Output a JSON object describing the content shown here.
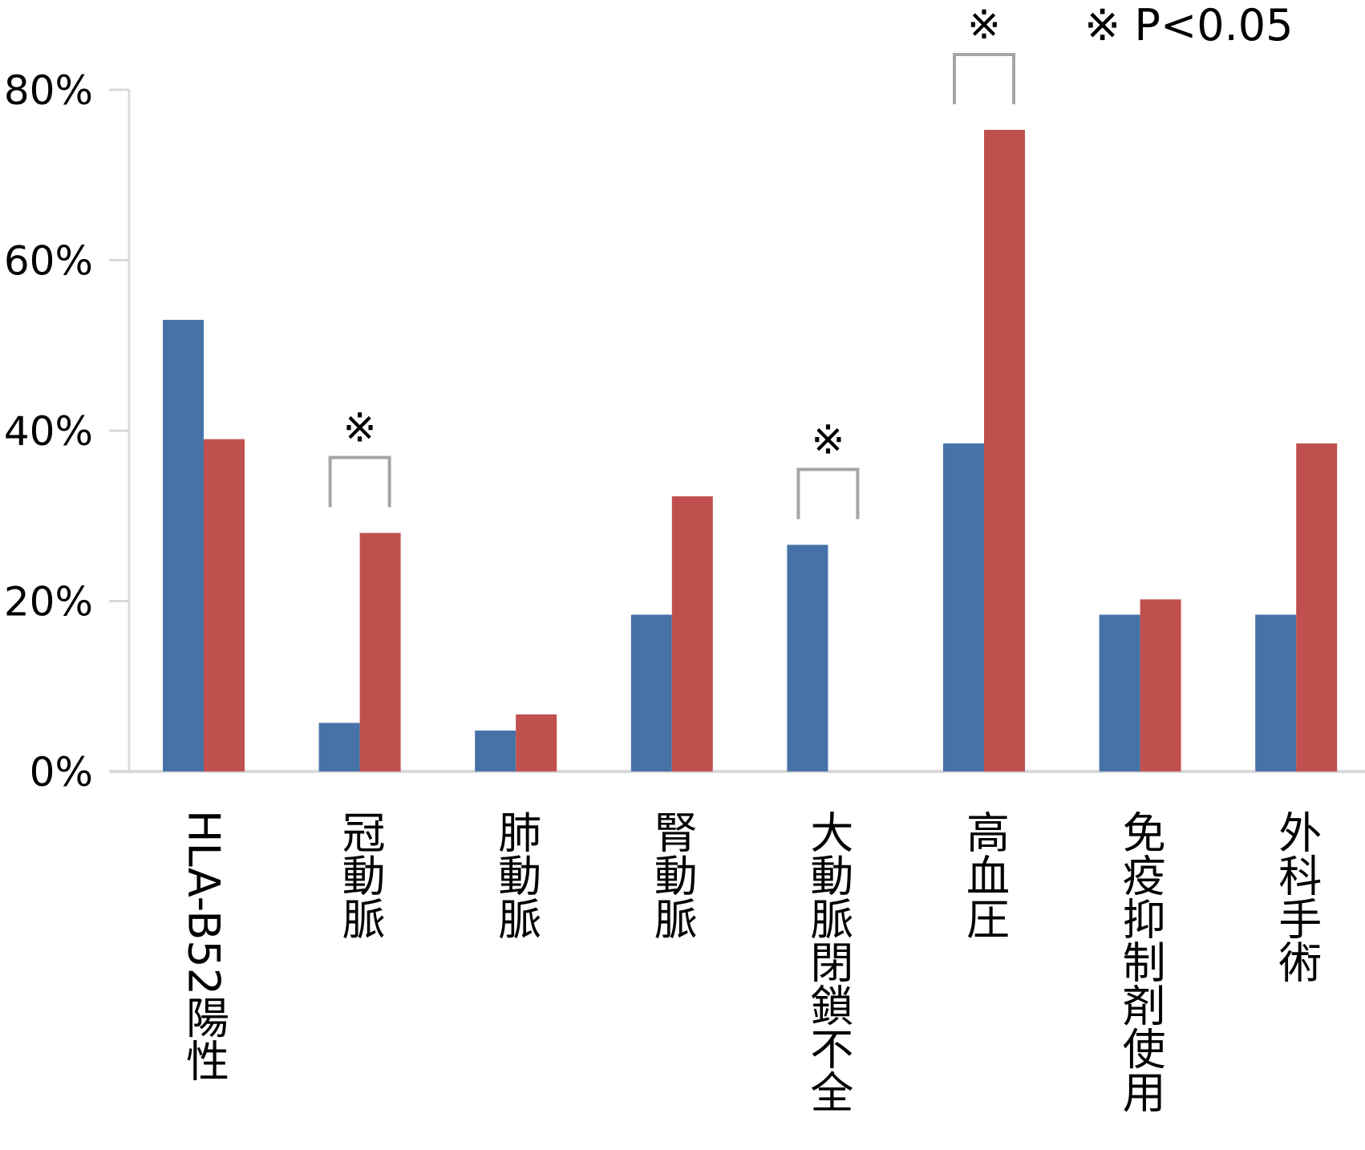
{
  "chart_data": {
    "type": "bar",
    "categories": [
      "HLA-B52陽性",
      "冠動脈",
      "肺動脈",
      "腎動脈",
      "大動脈閉鎖不全",
      "高血圧",
      "免疫抑制剤使用",
      "外科手術"
    ],
    "series": [
      {
        "values": [
          53.0,
          5.7,
          4.8,
          18.4,
          26.6,
          38.5,
          18.4,
          18.4
        ],
        "color": "#4672A8"
      },
      {
        "values": [
          39.0,
          28.0,
          6.7,
          32.3,
          0,
          75.3,
          20.2,
          38.5
        ],
        "color": "#C0504D"
      }
    ],
    "ylim": [
      0,
      80
    ],
    "yticks": [
      "0%",
      "20%",
      "40%",
      "60%",
      "80%"
    ],
    "ytick_values": [
      0,
      20,
      40,
      60,
      80
    ],
    "grid": false,
    "significance": {
      "marker": "※",
      "categories": [
        "冠動脈",
        "大動脈閉鎖不全",
        "高血圧"
      ]
    },
    "annotation": "※ P<0.05"
  }
}
